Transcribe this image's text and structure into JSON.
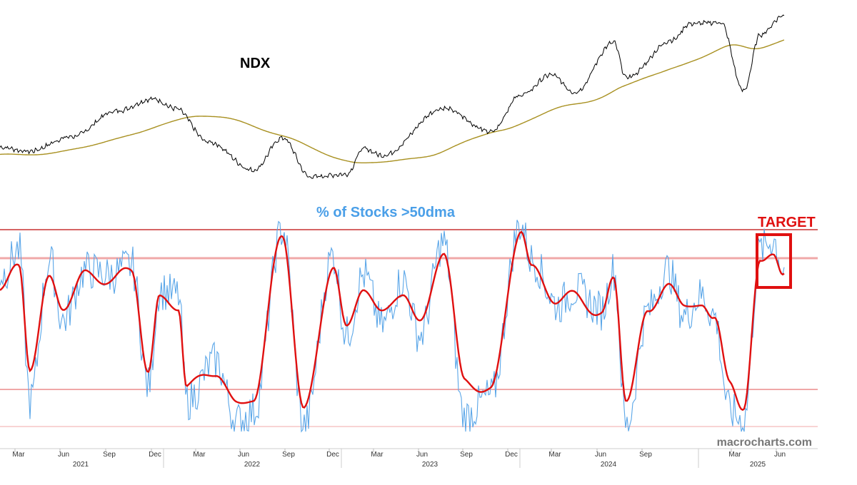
{
  "colors": {
    "ndx_line": "#000000",
    "ndx_ma": "#a89020",
    "breadth_raw": "#5aa6e8",
    "breadth_smooth": "#e01010",
    "title_blue": "#4a9fe8",
    "target_red": "#e01010",
    "ref_line_dark": "#c83030",
    "ref_line_light": "#f0a8a8",
    "watermark": "#777777",
    "axis_text": "#333333"
  },
  "chart_data": [
    {
      "type": "line",
      "title": "NDX",
      "x": [
        "2021-01-04",
        "2021-03-01",
        "2021-06-01",
        "2021-09-01",
        "2021-11-19",
        "2022-01-03",
        "2022-03-14",
        "2022-06-16",
        "2022-08-16",
        "2022-10-13",
        "2022-12-28",
        "2023-02-02",
        "2023-03-13",
        "2023-07-19",
        "2023-10-26",
        "2023-12-29",
        "2024-03-01",
        "2024-04-19",
        "2024-07-10",
        "2024-08-05",
        "2024-11-11",
        "2024-12-16",
        "2025-02-19",
        "2025-04-08",
        "2025-05-13",
        "2025-06-30"
      ],
      "series": [
        {
          "values": [
            12900,
            12600,
            13700,
            15600,
            16500,
            15800,
            13300,
            11200,
            13600,
            10700,
            10900,
            12800,
            12300,
            15800,
            14100,
            16800,
            18300,
            17000,
            20700,
            18100,
            20900,
            22100,
            22200,
            17100,
            21300,
            22700
          ]
        }
      ]
    },
    {
      "type": "line",
      "title": "% of Stocks >50dma",
      "x": [
        "2021-01-04",
        "2021-02-10",
        "2021-03-05",
        "2021-04-15",
        "2021-05-12",
        "2021-06-30",
        "2021-08-20",
        "2021-10-04",
        "2021-11-08",
        "2021-12-01",
        "2022-01-10",
        "2022-01-27",
        "2022-03-29",
        "2022-05-12",
        "2022-06-16",
        "2022-08-16",
        "2022-09-30",
        "2022-11-30",
        "2022-12-28",
        "2023-02-02",
        "2023-03-13",
        "2023-04-25",
        "2023-05-31",
        "2023-07-19",
        "2023-09-01",
        "2023-10-26",
        "2023-12-28",
        "2024-01-20",
        "2024-03-15",
        "2024-04-19",
        "2024-06-15",
        "2024-07-10",
        "2024-08-05",
        "2024-09-20",
        "2024-10-31",
        "2024-12-05",
        "2025-01-10",
        "2025-02-05",
        "2025-03-10",
        "2025-04-08",
        "2025-05-13",
        "2025-06-10",
        "2025-06-30"
      ],
      "series": [
        {
          "name": "raw",
          "values": [
            72,
            82,
            22,
            78,
            54,
            74,
            72,
            76,
            28,
            66,
            64,
            22,
            38,
            14,
            18,
            90,
            12,
            80,
            48,
            72,
            52,
            70,
            48,
            85,
            16,
            24,
            92,
            78,
            60,
            66,
            58,
            74,
            12,
            58,
            74,
            56,
            64,
            56,
            18,
            14,
            82,
            86,
            74
          ]
        },
        {
          "name": "smooth",
          "values": [
            66,
            76,
            36,
            70,
            60,
            72,
            70,
            74,
            34,
            62,
            60,
            28,
            34,
            20,
            24,
            88,
            18,
            76,
            50,
            68,
            56,
            66,
            52,
            82,
            30,
            26,
            90,
            74,
            62,
            64,
            56,
            70,
            24,
            56,
            70,
            58,
            62,
            54,
            30,
            20,
            76,
            82,
            73
          ]
        }
      ],
      "reference_levels": [
        90,
        80,
        23,
        12
      ],
      "annotation": "TARGET"
    }
  ],
  "axis": {
    "months": [
      "Mar",
      "Jun",
      "Sep",
      "Dec",
      "Mar",
      "Jun",
      "Sep",
      "Dec",
      "Mar",
      "Jun",
      "Sep",
      "Dec",
      "Mar",
      "Jun",
      "Sep",
      "Mar",
      "Jun"
    ],
    "years": [
      "2021",
      "2022",
      "2023",
      "2024",
      "2025"
    ]
  },
  "watermark": "macrocharts.com"
}
